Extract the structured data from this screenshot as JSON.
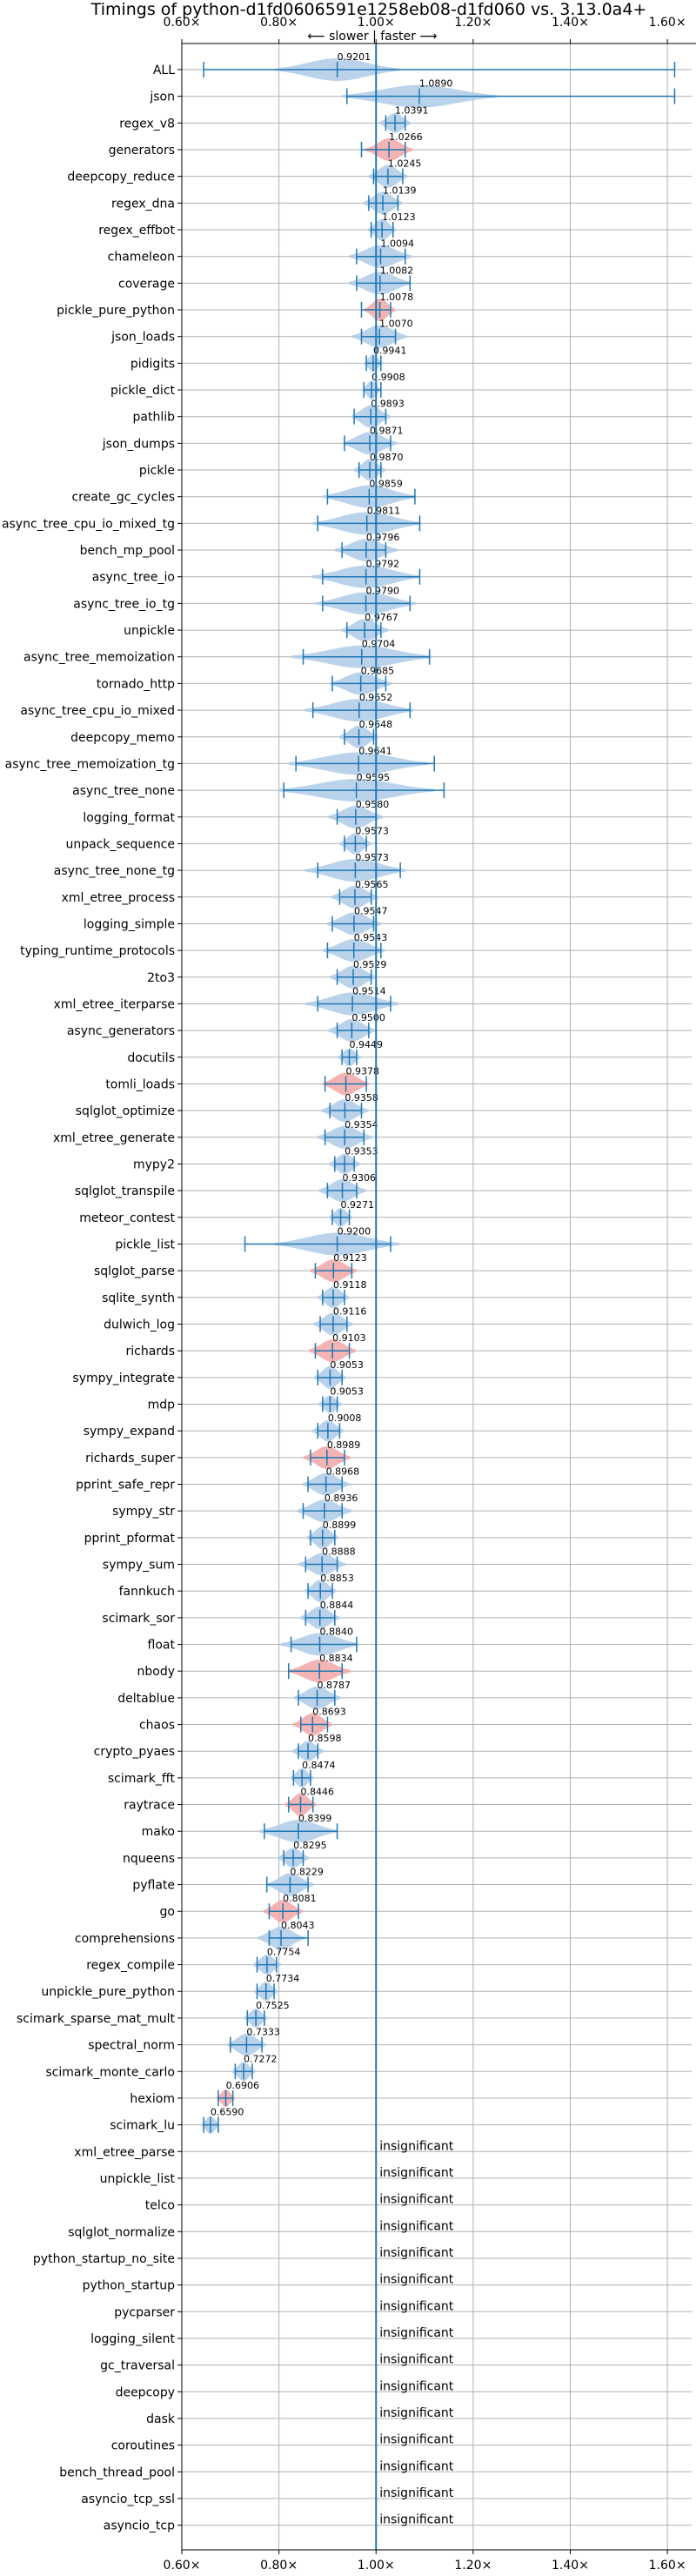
{
  "chart_data": {
    "type": "violin",
    "title": "Timings of python-d1fd0606591e1258eb08-d1fd060 vs. 3.13.0a4+",
    "subtitle": "⟵ slower | faster ⟶",
    "xlim": [
      0.6,
      1.65
    ],
    "x_ticks": [
      0.6,
      0.8,
      1.0,
      1.2,
      1.4,
      1.6
    ],
    "x_tick_labels": [
      "0.60×",
      "0.80×",
      "1.00×",
      "1.20×",
      "1.40×",
      "1.60×"
    ],
    "reference_line": 1.0,
    "grid": true,
    "colors": {
      "violin": "#aecbe6",
      "highlight": "#f2a7a7",
      "line": "#1f77b4",
      "grid": "#b0b0b0"
    },
    "benchmarks": [
      {
        "name": "ALL",
        "value": 0.9201,
        "value_label": "0.9201",
        "min": 0.645,
        "max": 1.615,
        "spread": 0.08,
        "highlight": false
      },
      {
        "name": "json",
        "value": 1.089,
        "value_label": "1.0890",
        "min": 0.94,
        "max": 1.615,
        "spread": 0.1,
        "highlight": false
      },
      {
        "name": "regex_v8",
        "value": 1.0391,
        "value_label": "1.0391",
        "min": 1.02,
        "max": 1.06,
        "spread": 0.02,
        "highlight": false
      },
      {
        "name": "generators",
        "value": 1.0266,
        "value_label": "1.0266",
        "min": 0.97,
        "max": 1.06,
        "spread": 0.03,
        "highlight": true
      },
      {
        "name": "deepcopy_reduce",
        "value": 1.0245,
        "value_label": "1.0245",
        "min": 0.995,
        "max": 1.055,
        "spread": 0.025,
        "highlight": false
      },
      {
        "name": "regex_dna",
        "value": 1.0139,
        "value_label": "1.0139",
        "min": 0.985,
        "max": 1.045,
        "spread": 0.025,
        "highlight": false
      },
      {
        "name": "regex_effbot",
        "value": 1.0123,
        "value_label": "1.0123",
        "min": 0.99,
        "max": 1.035,
        "spread": 0.018,
        "highlight": false
      },
      {
        "name": "chameleon",
        "value": 1.0094,
        "value_label": "1.0094",
        "min": 0.96,
        "max": 1.06,
        "spread": 0.04,
        "highlight": false
      },
      {
        "name": "coverage",
        "value": 1.0082,
        "value_label": "1.0082",
        "min": 0.96,
        "max": 1.07,
        "spread": 0.04,
        "highlight": false
      },
      {
        "name": "pickle_pure_python",
        "value": 1.0078,
        "value_label": "1.0078",
        "min": 0.97,
        "max": 1.03,
        "spread": 0.02,
        "highlight": true
      },
      {
        "name": "json_loads",
        "value": 1.007,
        "value_label": "1.0070",
        "min": 0.97,
        "max": 1.04,
        "spread": 0.035,
        "highlight": false
      },
      {
        "name": "pidigits",
        "value": 0.9941,
        "value_label": "0.9941",
        "min": 0.98,
        "max": 1.01,
        "spread": 0.012,
        "highlight": false
      },
      {
        "name": "pickle_dict",
        "value": 0.9908,
        "value_label": "0.9908",
        "min": 0.975,
        "max": 1.01,
        "spread": 0.012,
        "highlight": false
      },
      {
        "name": "pathlib",
        "value": 0.9893,
        "value_label": "0.9893",
        "min": 0.955,
        "max": 1.02,
        "spread": 0.025,
        "highlight": false
      },
      {
        "name": "json_dumps",
        "value": 0.9871,
        "value_label": "0.9871",
        "min": 0.935,
        "max": 1.03,
        "spread": 0.035,
        "highlight": false
      },
      {
        "name": "pickle",
        "value": 0.987,
        "value_label": "0.9870",
        "min": 0.965,
        "max": 1.01,
        "spread": 0.02,
        "highlight": false
      },
      {
        "name": "create_gc_cycles",
        "value": 0.9859,
        "value_label": "0.9859",
        "min": 0.9,
        "max": 1.08,
        "spread": 0.06,
        "highlight": false
      },
      {
        "name": "async_tree_cpu_io_mixed_tg",
        "value": 0.9811,
        "value_label": "0.9811",
        "min": 0.88,
        "max": 1.09,
        "spread": 0.07,
        "highlight": false
      },
      {
        "name": "bench_mp_pool",
        "value": 0.9796,
        "value_label": "0.9796",
        "min": 0.93,
        "max": 1.02,
        "spread": 0.04,
        "highlight": false
      },
      {
        "name": "async_tree_io",
        "value": 0.9792,
        "value_label": "0.9792",
        "min": 0.89,
        "max": 1.09,
        "spread": 0.07,
        "highlight": false
      },
      {
        "name": "async_tree_io_tg",
        "value": 0.979,
        "value_label": "0.9790",
        "min": 0.89,
        "max": 1.07,
        "spread": 0.065,
        "highlight": false
      },
      {
        "name": "unpickle",
        "value": 0.9767,
        "value_label": "0.9767",
        "min": 0.94,
        "max": 1.01,
        "spread": 0.03,
        "highlight": false
      },
      {
        "name": "async_tree_memoization",
        "value": 0.9704,
        "value_label": "0.9704",
        "min": 0.85,
        "max": 1.11,
        "spread": 0.09,
        "highlight": false
      },
      {
        "name": "tornado_http",
        "value": 0.9685,
        "value_label": "0.9685",
        "min": 0.91,
        "max": 1.02,
        "spread": 0.04,
        "highlight": false
      },
      {
        "name": "async_tree_cpu_io_mixed",
        "value": 0.9652,
        "value_label": "0.9652",
        "min": 0.87,
        "max": 1.07,
        "spread": 0.07,
        "highlight": false
      },
      {
        "name": "deepcopy_memo",
        "value": 0.9648,
        "value_label": "0.9648",
        "min": 0.935,
        "max": 0.995,
        "spread": 0.025,
        "highlight": false
      },
      {
        "name": "async_tree_memoization_tg",
        "value": 0.9641,
        "value_label": "0.9641",
        "min": 0.835,
        "max": 1.12,
        "spread": 0.09,
        "highlight": false
      },
      {
        "name": "async_tree_none",
        "value": 0.9595,
        "value_label": "0.9595",
        "min": 0.81,
        "max": 1.14,
        "spread": 0.1,
        "highlight": false
      },
      {
        "name": "logging_format",
        "value": 0.958,
        "value_label": "0.9580",
        "min": 0.92,
        "max": 1.0,
        "spread": 0.035,
        "highlight": false
      },
      {
        "name": "unpack_sequence",
        "value": 0.9573,
        "value_label": "0.9573",
        "min": 0.935,
        "max": 0.98,
        "spread": 0.02,
        "highlight": false
      },
      {
        "name": "async_tree_none_tg",
        "value": 0.9573,
        "value_label": "0.9573",
        "min": 0.88,
        "max": 1.05,
        "spread": 0.065,
        "highlight": false
      },
      {
        "name": "xml_etree_process",
        "value": 0.9565,
        "value_label": "0.9565",
        "min": 0.925,
        "max": 0.99,
        "spread": 0.03,
        "highlight": false
      },
      {
        "name": "logging_simple",
        "value": 0.9547,
        "value_label": "0.9547",
        "min": 0.91,
        "max": 0.995,
        "spread": 0.035,
        "highlight": false
      },
      {
        "name": "typing_runtime_protocols",
        "value": 0.9543,
        "value_label": "0.9543",
        "min": 0.9,
        "max": 1.01,
        "spread": 0.04,
        "highlight": false
      },
      {
        "name": "2to3",
        "value": 0.9529,
        "value_label": "0.9529",
        "min": 0.92,
        "max": 0.99,
        "spread": 0.03,
        "highlight": false
      },
      {
        "name": "xml_etree_iterparse",
        "value": 0.9514,
        "value_label": "0.9514",
        "min": 0.88,
        "max": 1.03,
        "spread": 0.06,
        "highlight": false
      },
      {
        "name": "async_generators",
        "value": 0.95,
        "value_label": "0.9500",
        "min": 0.92,
        "max": 0.985,
        "spread": 0.03,
        "highlight": false
      },
      {
        "name": "docutils",
        "value": 0.9449,
        "value_label": "0.9449",
        "min": 0.93,
        "max": 0.96,
        "spread": 0.015,
        "highlight": false
      },
      {
        "name": "tomli_loads",
        "value": 0.9378,
        "value_label": "0.9378",
        "min": 0.895,
        "max": 0.98,
        "spread": 0.03,
        "highlight": true
      },
      {
        "name": "sqlglot_optimize",
        "value": 0.9358,
        "value_label": "0.9358",
        "min": 0.905,
        "max": 0.97,
        "spread": 0.03,
        "highlight": false
      },
      {
        "name": "xml_etree_generate",
        "value": 0.9354,
        "value_label": "0.9354",
        "min": 0.895,
        "max": 0.975,
        "spread": 0.035,
        "highlight": false
      },
      {
        "name": "mypy2",
        "value": 0.9353,
        "value_label": "0.9353",
        "min": 0.915,
        "max": 0.955,
        "spread": 0.02,
        "highlight": false
      },
      {
        "name": "sqlglot_transpile",
        "value": 0.9306,
        "value_label": "0.9306",
        "min": 0.9,
        "max": 0.96,
        "spread": 0.03,
        "highlight": false
      },
      {
        "name": "meteor_contest",
        "value": 0.9271,
        "value_label": "0.9271",
        "min": 0.91,
        "max": 0.945,
        "spread": 0.015,
        "highlight": false
      },
      {
        "name": "pickle_list",
        "value": 0.92,
        "value_label": "0.9200",
        "min": 0.73,
        "max": 1.03,
        "spread": 0.08,
        "highlight": false
      },
      {
        "name": "sqlglot_parse",
        "value": 0.9123,
        "value_label": "0.9123",
        "min": 0.875,
        "max": 0.95,
        "spread": 0.03,
        "highlight": true
      },
      {
        "name": "sqlite_synth",
        "value": 0.9118,
        "value_label": "0.9118",
        "min": 0.89,
        "max": 0.935,
        "spread": 0.02,
        "highlight": false
      },
      {
        "name": "dulwich_log",
        "value": 0.9116,
        "value_label": "0.9116",
        "min": 0.885,
        "max": 0.94,
        "spread": 0.025,
        "highlight": false
      },
      {
        "name": "richards",
        "value": 0.9103,
        "value_label": "0.9103",
        "min": 0.875,
        "max": 0.945,
        "spread": 0.03,
        "highlight": true
      },
      {
        "name": "sympy_integrate",
        "value": 0.9053,
        "value_label": "0.9053",
        "min": 0.88,
        "max": 0.93,
        "spread": 0.02,
        "highlight": false
      },
      {
        "name": "mdp",
        "value": 0.9053,
        "value_label": "0.9053",
        "min": 0.89,
        "max": 0.92,
        "spread": 0.015,
        "highlight": false
      },
      {
        "name": "sympy_expand",
        "value": 0.9008,
        "value_label": "0.9008",
        "min": 0.88,
        "max": 0.925,
        "spread": 0.02,
        "highlight": false
      },
      {
        "name": "richards_super",
        "value": 0.8989,
        "value_label": "0.8989",
        "min": 0.865,
        "max": 0.935,
        "spread": 0.03,
        "highlight": true
      },
      {
        "name": "pprint_safe_repr",
        "value": 0.8968,
        "value_label": "0.8968",
        "min": 0.86,
        "max": 0.93,
        "spread": 0.03,
        "highlight": false
      },
      {
        "name": "sympy_str",
        "value": 0.8936,
        "value_label": "0.8936",
        "min": 0.85,
        "max": 0.93,
        "spread": 0.035,
        "highlight": false
      },
      {
        "name": "pprint_pformat",
        "value": 0.8899,
        "value_label": "0.8899",
        "min": 0.865,
        "max": 0.915,
        "spread": 0.02,
        "highlight": false
      },
      {
        "name": "sympy_sum",
        "value": 0.8888,
        "value_label": "0.8888",
        "min": 0.855,
        "max": 0.92,
        "spread": 0.03,
        "highlight": false
      },
      {
        "name": "fannkuch",
        "value": 0.8853,
        "value_label": "0.8853",
        "min": 0.86,
        "max": 0.91,
        "spread": 0.02,
        "highlight": false
      },
      {
        "name": "scimark_sor",
        "value": 0.8844,
        "value_label": "0.8844",
        "min": 0.855,
        "max": 0.915,
        "spread": 0.025,
        "highlight": false
      },
      {
        "name": "float",
        "value": 0.884,
        "value_label": "0.8840",
        "min": 0.825,
        "max": 0.96,
        "spread": 0.05,
        "highlight": false
      },
      {
        "name": "nbody",
        "value": 0.8834,
        "value_label": "0.8834",
        "min": 0.82,
        "max": 0.93,
        "spread": 0.04,
        "highlight": true
      },
      {
        "name": "deltablue",
        "value": 0.8787,
        "value_label": "0.8787",
        "min": 0.84,
        "max": 0.915,
        "spread": 0.03,
        "highlight": false
      },
      {
        "name": "chaos",
        "value": 0.8693,
        "value_label": "0.8693",
        "min": 0.845,
        "max": 0.9,
        "spread": 0.025,
        "highlight": true
      },
      {
        "name": "crypto_pyaes",
        "value": 0.8598,
        "value_label": "0.8598",
        "min": 0.84,
        "max": 0.88,
        "spread": 0.02,
        "highlight": false
      },
      {
        "name": "scimark_fft",
        "value": 0.8474,
        "value_label": "0.8474",
        "min": 0.83,
        "max": 0.865,
        "spread": 0.015,
        "highlight": false
      },
      {
        "name": "raytrace",
        "value": 0.8446,
        "value_label": "0.8446",
        "min": 0.82,
        "max": 0.87,
        "spread": 0.02,
        "highlight": true
      },
      {
        "name": "mako",
        "value": 0.8399,
        "value_label": "0.8399",
        "min": 0.77,
        "max": 0.92,
        "spread": 0.05,
        "highlight": false
      },
      {
        "name": "nqueens",
        "value": 0.8295,
        "value_label": "0.8295",
        "min": 0.81,
        "max": 0.85,
        "spread": 0.02,
        "highlight": false
      },
      {
        "name": "pyflate",
        "value": 0.8229,
        "value_label": "0.8229",
        "min": 0.775,
        "max": 0.86,
        "spread": 0.03,
        "highlight": false
      },
      {
        "name": "go",
        "value": 0.8081,
        "value_label": "0.8081",
        "min": 0.78,
        "max": 0.84,
        "spread": 0.025,
        "highlight": true
      },
      {
        "name": "comprehensions",
        "value": 0.8043,
        "value_label": "0.8043",
        "min": 0.78,
        "max": 0.86,
        "spread": 0.03,
        "highlight": false
      },
      {
        "name": "regex_compile",
        "value": 0.7754,
        "value_label": "0.7754",
        "min": 0.755,
        "max": 0.795,
        "spread": 0.018,
        "highlight": false
      },
      {
        "name": "unpickle_pure_python",
        "value": 0.7734,
        "value_label": "0.7734",
        "min": 0.755,
        "max": 0.79,
        "spread": 0.015,
        "highlight": false
      },
      {
        "name": "scimark_sparse_mat_mult",
        "value": 0.7525,
        "value_label": "0.7525",
        "min": 0.735,
        "max": 0.77,
        "spread": 0.015,
        "highlight": false
      },
      {
        "name": "spectral_norm",
        "value": 0.7333,
        "value_label": "0.7333",
        "min": 0.7,
        "max": 0.765,
        "spread": 0.025,
        "highlight": false
      },
      {
        "name": "scimark_monte_carlo",
        "value": 0.7272,
        "value_label": "0.7272",
        "min": 0.71,
        "max": 0.745,
        "spread": 0.015,
        "highlight": false
      },
      {
        "name": "hexiom",
        "value": 0.6906,
        "value_label": "0.6906",
        "min": 0.675,
        "max": 0.705,
        "spread": 0.012,
        "highlight": true
      },
      {
        "name": "scimark_lu",
        "value": 0.659,
        "value_label": "0.6590",
        "min": 0.645,
        "max": 0.675,
        "spread": 0.012,
        "highlight": false
      },
      {
        "name": "xml_etree_parse",
        "insignificant": true
      },
      {
        "name": "unpickle_list",
        "insignificant": true
      },
      {
        "name": "telco",
        "insignificant": true
      },
      {
        "name": "sqlglot_normalize",
        "insignificant": true
      },
      {
        "name": "python_startup_no_site",
        "insignificant": true
      },
      {
        "name": "python_startup",
        "insignificant": true
      },
      {
        "name": "pycparser",
        "insignificant": true
      },
      {
        "name": "logging_silent",
        "insignificant": true
      },
      {
        "name": "gc_traversal",
        "insignificant": true
      },
      {
        "name": "deepcopy",
        "insignificant": true
      },
      {
        "name": "dask",
        "insignificant": true
      },
      {
        "name": "coroutines",
        "insignificant": true
      },
      {
        "name": "bench_thread_pool",
        "insignificant": true
      },
      {
        "name": "asyncio_tcp_ssl",
        "insignificant": true
      },
      {
        "name": "asyncio_tcp",
        "insignificant": true
      }
    ],
    "insignificant_label": "insignificant"
  }
}
